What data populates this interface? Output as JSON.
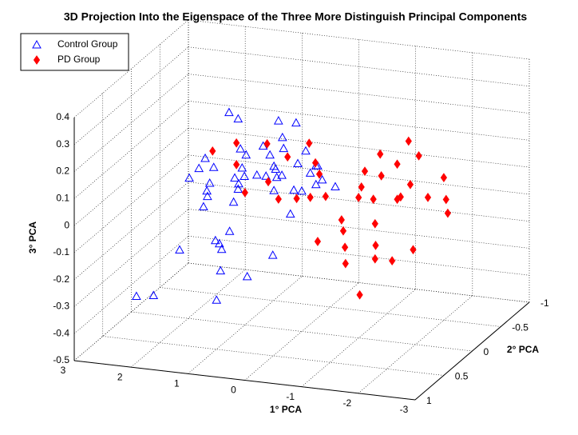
{
  "chart_data": {
    "type": "scatter3d",
    "title": "3D Projection Into the Eigenspace of the Three More Distinguish Principal Components",
    "x_label": "1° PCA",
    "y_label": "2° PCA",
    "z_label": "3° PCA",
    "xlim": [
      -3,
      3
    ],
    "ylim": [
      -1,
      1
    ],
    "zlim": [
      -0.5,
      0.4
    ],
    "xticks": [
      3,
      2,
      1,
      0,
      -1,
      -2,
      -3
    ],
    "yticks": [
      1,
      0.5,
      0,
      -0.5,
      -1
    ],
    "zticks": [
      -0.5,
      -0.4,
      -0.3,
      -0.2,
      -0.1,
      0,
      0.1,
      0.2,
      0.3,
      0.4
    ],
    "grid": true,
    "legend": "upper-left",
    "series": [
      {
        "name": "Control Group",
        "color": "#0000ff",
        "marker": "triangle",
        "x": [
          1.28,
          1.12,
          0.41,
          0.1,
          0.34,
          1.08,
          0.68,
          -0.07,
          0.98,
          0.56,
          0.32,
          1.7,
          1.81,
          1.55,
          0.49,
          0.07,
          -0.28,
          1.98,
          1.05,
          0.79,
          0.63,
          0.46,
          0.35,
          -0.25,
          1.01,
          1.18,
          -0.15,
          -0.36,
          1.62,
          1.67,
          1.11,
          1.66,
          1.12,
          0.44,
          -0.25,
          -0.59,
          0.14,
          0.0,
          0.49,
          1.2,
          1.73,
          0.2,
          1.27,
          1.52,
          1.45,
          2.15,
          1.41,
          0.51,
          1.43,
          0.96,
          1.5,
          2.91,
          2.61
        ],
        "y": [
          0,
          0,
          0,
          0,
          0,
          0,
          0,
          0,
          0,
          0,
          0,
          0,
          0,
          0,
          0,
          0,
          0,
          0,
          0,
          0,
          0,
          0,
          0,
          0,
          0,
          0,
          0,
          0,
          0,
          0,
          0,
          0,
          0,
          0,
          0,
          0,
          0,
          0,
          0,
          0,
          0,
          0,
          0,
          0,
          0,
          0,
          0,
          0,
          0,
          0,
          0,
          0,
          0
        ],
        "z": [
          0.28,
          0.26,
          0.27,
          0.27,
          0.21,
          0.15,
          0.17,
          0.17,
          0.13,
          0.14,
          0.17,
          0.1,
          0.06,
          0.07,
          0.1,
          0.12,
          0.12,
          0.02,
          0.08,
          0.06,
          0.06,
          0.09,
          0.07,
          0.12,
          0.05,
          0.04,
          0.09,
          0.07,
          0.01,
          -0.02,
          0.02,
          -0.04,
          0.0,
          0.06,
          0.05,
          0.05,
          0.02,
          0.02,
          0.01,
          -0.05,
          -0.08,
          -0.07,
          -0.16,
          -0.2,
          -0.21,
          -0.25,
          -0.23,
          -0.23,
          -0.31,
          -0.32,
          -0.42,
          -0.44,
          -0.43
        ]
      },
      {
        "name": "PD Group",
        "color": "#ff0000",
        "marker": "diamond",
        "x": [
          1.57,
          1.15,
          1.15,
          0.61,
          0.25,
          -0.13,
          -0.24,
          -0.31,
          1.0,
          0.59,
          0.41,
          0.09,
          -0.15,
          -0.42,
          -1.11,
          -1.05,
          -1.0,
          -1.26,
          -1.38,
          -1.4,
          -1.68,
          -1.88,
          -2.06,
          -1.91,
          -1.74,
          -1.68,
          -2.22,
          -2.5,
          -2.54,
          -2.57,
          -0.7,
          -0.73,
          -0.28,
          -0.76,
          -1.29,
          -1.3,
          -1.96,
          -1.59,
          -1.29,
          -0.77,
          -1.02
        ],
        "y": [
          0,
          0,
          0,
          0,
          0,
          0,
          0,
          0,
          0,
          0,
          0,
          0,
          0,
          0,
          0,
          0,
          0,
          0,
          0,
          0,
          0,
          0,
          0,
          0,
          0,
          0,
          0,
          0,
          0,
          0,
          0,
          0,
          0,
          0,
          0,
          0,
          0,
          0,
          0,
          0,
          0
        ],
        "z": [
          0.13,
          0.09,
          0.17,
          0.18,
          0.14,
          0.2,
          0.13,
          0.09,
          -0.01,
          0.04,
          -0.02,
          -0.01,
          0.0,
          0.01,
          0.12,
          0.06,
          0.02,
          0.02,
          0.19,
          0.11,
          0.16,
          0.25,
          0.2,
          0.09,
          0.04,
          0.03,
          0.05,
          0.13,
          0.05,
          0.0,
          -0.07,
          -0.11,
          -0.16,
          -0.17,
          -0.07,
          -0.15,
          -0.15,
          -0.2,
          -0.2,
          -0.23,
          -0.34
        ]
      }
    ]
  }
}
